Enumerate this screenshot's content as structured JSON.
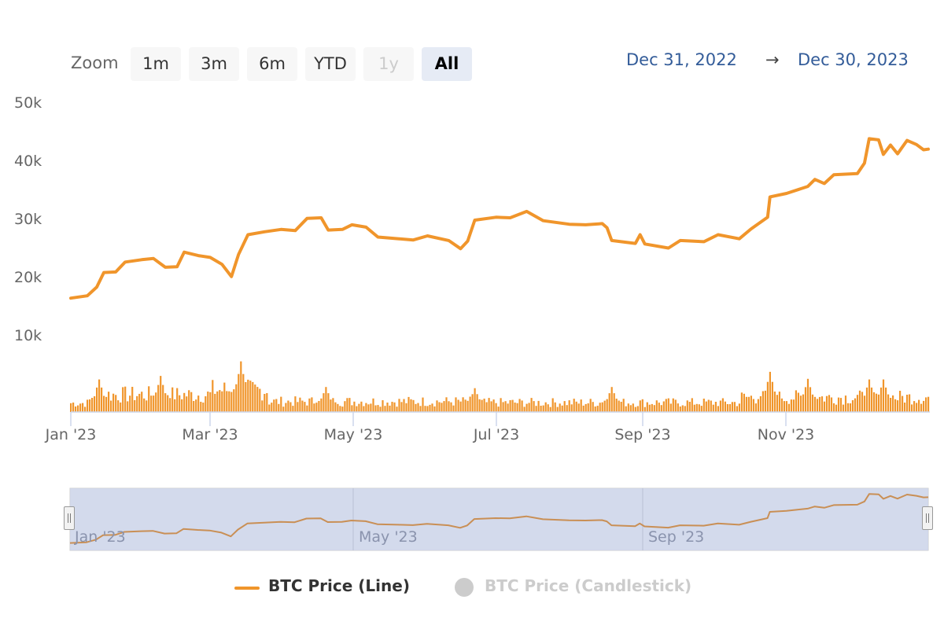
{
  "chart_data": {
    "type": "line",
    "title": "",
    "series": [
      {
        "name": "BTC Price (Line)",
        "type": "line",
        "color": "#f0952b",
        "visible": true,
        "points": [
          [
            "2023-01-01",
            16600
          ],
          [
            "2023-01-08",
            17000
          ],
          [
            "2023-01-12",
            18500
          ],
          [
            "2023-01-15",
            21000
          ],
          [
            "2023-01-20",
            21100
          ],
          [
            "2023-01-24",
            22800
          ],
          [
            "2023-01-31",
            23200
          ],
          [
            "2023-02-05",
            23400
          ],
          [
            "2023-02-10",
            21900
          ],
          [
            "2023-02-15",
            22000
          ],
          [
            "2023-02-18",
            24500
          ],
          [
            "2023-02-24",
            23900
          ],
          [
            "2023-03-01",
            23600
          ],
          [
            "2023-03-06",
            22400
          ],
          [
            "2023-03-10",
            20300
          ],
          [
            "2023-03-13",
            24100
          ],
          [
            "2023-03-17",
            27500
          ],
          [
            "2023-03-24",
            28000
          ],
          [
            "2023-03-31",
            28400
          ],
          [
            "2023-04-06",
            28200
          ],
          [
            "2023-04-11",
            30300
          ],
          [
            "2023-04-17",
            30400
          ],
          [
            "2023-04-20",
            28300
          ],
          [
            "2023-04-26",
            28400
          ],
          [
            "2023-04-30",
            29200
          ],
          [
            "2023-05-06",
            28800
          ],
          [
            "2023-05-11",
            27100
          ],
          [
            "2023-05-20",
            26800
          ],
          [
            "2023-05-26",
            26600
          ],
          [
            "2023-06-01",
            27300
          ],
          [
            "2023-06-10",
            26500
          ],
          [
            "2023-06-15",
            25100
          ],
          [
            "2023-06-18",
            26400
          ],
          [
            "2023-06-21",
            30000
          ],
          [
            "2023-06-30",
            30500
          ],
          [
            "2023-07-06",
            30400
          ],
          [
            "2023-07-13",
            31500
          ],
          [
            "2023-07-20",
            29900
          ],
          [
            "2023-07-31",
            29300
          ],
          [
            "2023-08-07",
            29200
          ],
          [
            "2023-08-14",
            29400
          ],
          [
            "2023-08-16",
            28700
          ],
          [
            "2023-08-18",
            26500
          ],
          [
            "2023-08-28",
            26000
          ],
          [
            "2023-08-30",
            27500
          ],
          [
            "2023-09-01",
            25900
          ],
          [
            "2023-09-11",
            25200
          ],
          [
            "2023-09-16",
            26500
          ],
          [
            "2023-09-26",
            26300
          ],
          [
            "2023-10-02",
            27500
          ],
          [
            "2023-10-11",
            26800
          ],
          [
            "2023-10-16",
            28500
          ],
          [
            "2023-10-23",
            30500
          ],
          [
            "2023-10-24",
            34000
          ],
          [
            "2023-10-31",
            34600
          ],
          [
            "2023-11-09",
            35800
          ],
          [
            "2023-11-12",
            37000
          ],
          [
            "2023-11-16",
            36300
          ],
          [
            "2023-11-20",
            37800
          ],
          [
            "2023-11-30",
            38000
          ],
          [
            "2023-12-03",
            39800
          ],
          [
            "2023-12-05",
            44000
          ],
          [
            "2023-12-09",
            43800
          ],
          [
            "2023-12-11",
            41300
          ],
          [
            "2023-12-14",
            42900
          ],
          [
            "2023-12-17",
            41400
          ],
          [
            "2023-12-21",
            43700
          ],
          [
            "2023-12-25",
            43000
          ],
          [
            "2023-12-28",
            42100
          ],
          [
            "2023-12-30",
            42200
          ]
        ]
      },
      {
        "name": "Volume",
        "type": "column",
        "color": "#f0952b",
        "note": "daily columns below price line, approx range 1k-9k on same axis",
        "peaks": [
          [
            "2023-01-13",
            5600
          ],
          [
            "2023-02-08",
            6200
          ],
          [
            "2023-03-14",
            8700
          ],
          [
            "2023-04-19",
            4300
          ],
          [
            "2023-06-21",
            4100
          ],
          [
            "2023-08-18",
            4300
          ],
          [
            "2023-10-24",
            6900
          ],
          [
            "2023-11-09",
            5700
          ],
          [
            "2023-12-05",
            5600
          ],
          [
            "2023-12-11",
            5600
          ]
        ]
      },
      {
        "name": "BTC Price (Candlestick)",
        "type": "candlestick",
        "color": "#cccccc",
        "visible": false,
        "points": []
      }
    ],
    "xlabel": "",
    "ylabel": "",
    "x_ticks": [
      "Jan '23",
      "Mar '23",
      "May '23",
      "Jul '23",
      "Sep '23",
      "Nov '23"
    ],
    "y_ticks": [
      "10k",
      "20k",
      "30k",
      "40k",
      "50k"
    ],
    "ylim": [
      0,
      50000
    ],
    "grid": false,
    "legend_position": "bottom"
  },
  "rangeSelector": {
    "label": "Zoom",
    "buttons": [
      {
        "label": "1m",
        "state": "normal"
      },
      {
        "label": "3m",
        "state": "normal"
      },
      {
        "label": "6m",
        "state": "normal"
      },
      {
        "label": "YTD",
        "state": "normal"
      },
      {
        "label": "1y",
        "state": "disabled"
      },
      {
        "label": "All",
        "state": "active"
      }
    ],
    "from": "Dec 31, 2022",
    "arrow": "→",
    "to": "Dec 30, 2023"
  },
  "yAxis": {
    "labels": [
      "50k",
      "40k",
      "30k",
      "20k",
      "10k"
    ]
  },
  "xAxis": {
    "labels": [
      "Jan '23",
      "Mar '23",
      "May '23",
      "Jul '23",
      "Sep '23",
      "Nov '23"
    ]
  },
  "navigator": {
    "labels": [
      "Jan '23",
      "May '23",
      "Sep '23"
    ]
  },
  "legend": {
    "items": [
      {
        "label": "BTC Price (Line)",
        "color": "#f0952b",
        "active": true
      },
      {
        "label": "BTC Price (Candlestick)",
        "color": "#cccccc",
        "active": false
      }
    ]
  }
}
